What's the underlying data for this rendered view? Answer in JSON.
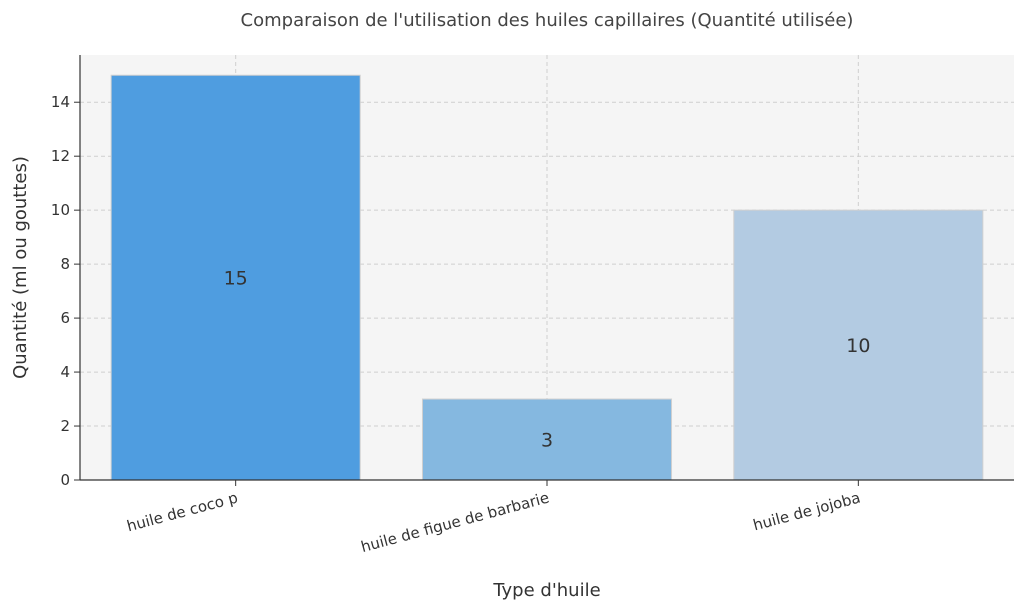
{
  "chart_data": {
    "type": "bar",
    "title": "Comparaison de l'utilisation des huiles capillaires (Quantité utilisée)",
    "xlabel": "Type d'huile",
    "ylabel": "Quantité (ml ou gouttes)",
    "categories": [
      "huile de coco p",
      "huile de figue de barbarie",
      "huile de jojoba"
    ],
    "values": [
      15,
      3,
      10
    ],
    "data_labels": [
      "15",
      "3",
      "10"
    ],
    "colors": [
      "#4f9de0",
      "#85b8e0",
      "#b3cbe2"
    ],
    "ylim": [
      0,
      15.75
    ],
    "yticks": [
      0,
      2,
      4,
      6,
      8,
      10,
      12,
      14
    ],
    "grid": true,
    "background": "#f5f5f5"
  }
}
